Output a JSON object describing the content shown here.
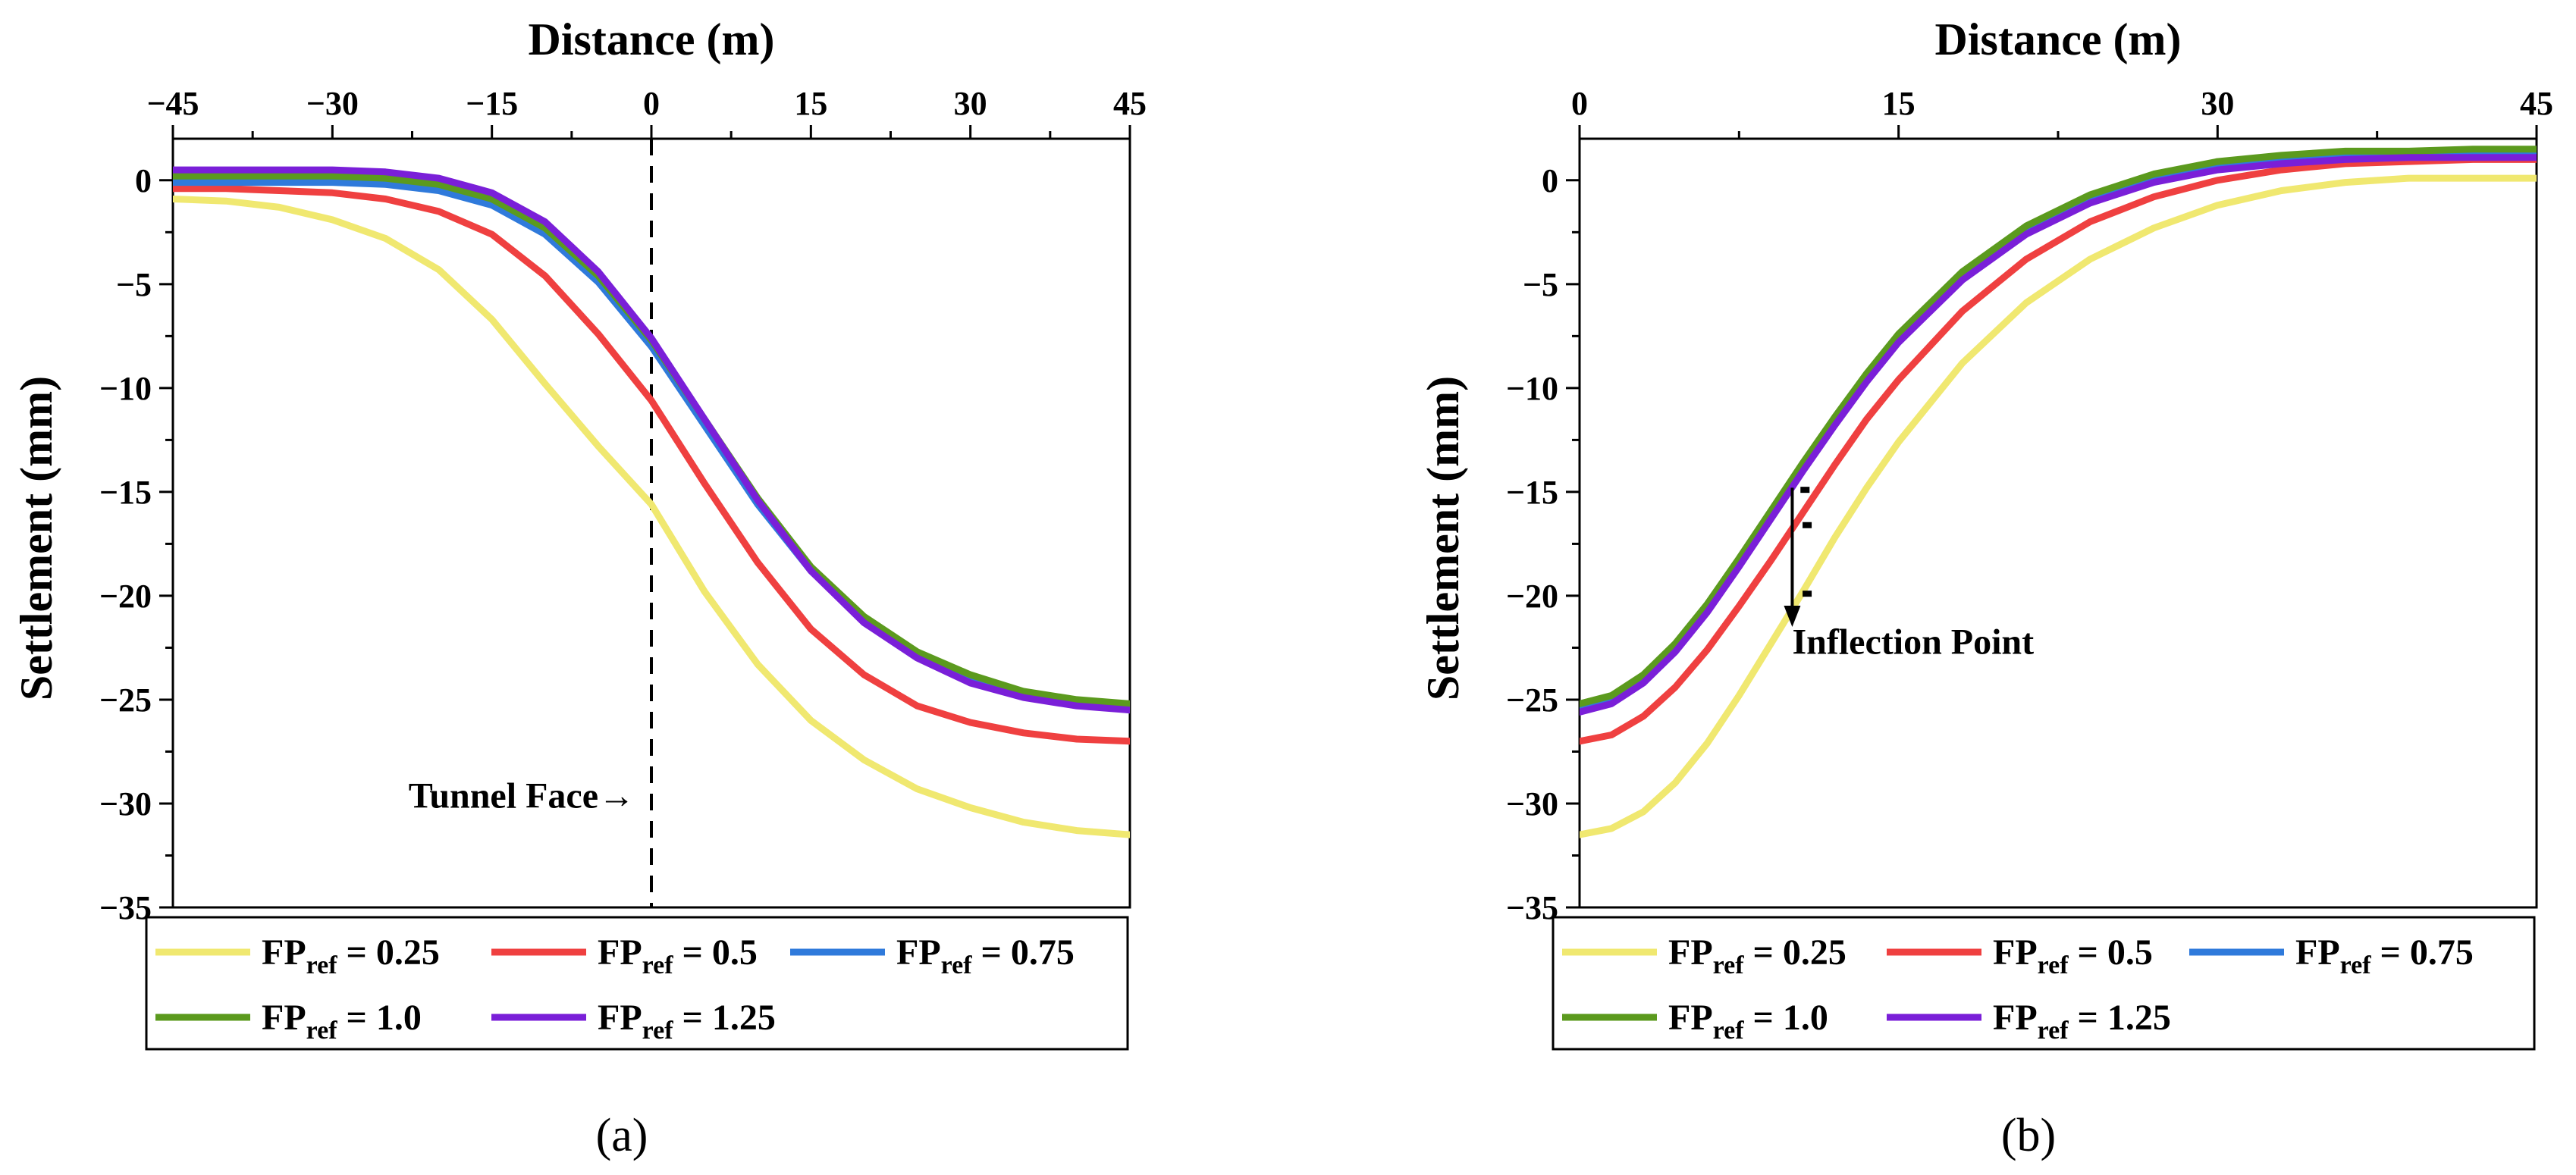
{
  "chart_data": [
    {
      "type": "line",
      "panel_caption": "(a)",
      "xlabel": "Distance (m)",
      "ylabel": "Settlement (mm)",
      "xlim": [
        -45,
        45
      ],
      "ylim": [
        -35,
        2
      ],
      "x_ticks": [
        -45,
        -30,
        -15,
        0,
        15,
        30,
        45
      ],
      "x_tick_labels": [
        "−45",
        "−30",
        "−15",
        "0",
        "15",
        "30",
        "45"
      ],
      "y_ticks": [
        0,
        -5,
        -10,
        -15,
        -20,
        -25,
        -30,
        -35
      ],
      "y_tick_labels": [
        "0",
        "−5",
        "−10",
        "−15",
        "−20",
        "−25",
        "−30",
        "−35"
      ],
      "grid": false,
      "x_axis_position": "top",
      "legend_position": "bottom",
      "annotations": [
        {
          "text": "Tunnel Face→",
          "x": 0,
          "y": -30.2
        }
      ],
      "reference_line": {
        "type": "vertical-dashed",
        "x": 0
      },
      "series": [
        {
          "name": "FP_ref = 0.25",
          "legend_main": "FP",
          "legend_sub": "ref",
          "legend_value": " = 0.25",
          "color": "#F0E870",
          "x": [
            -45,
            -40,
            -35,
            -30,
            -25,
            -20,
            -15,
            -10,
            -5,
            0,
            5,
            10,
            15,
            20,
            25,
            30,
            35,
            40,
            45
          ],
          "y": [
            -0.9,
            -1.0,
            -1.3,
            -1.9,
            -2.8,
            -4.3,
            -6.7,
            -9.8,
            -12.8,
            -15.6,
            -19.8,
            -23.3,
            -26.0,
            -27.9,
            -29.3,
            -30.2,
            -30.9,
            -31.3,
            -31.5
          ]
        },
        {
          "name": "FP_ref = 0.5",
          "legend_main": "FP",
          "legend_sub": "ref",
          "legend_value": " = 0.5",
          "color": "#EF4040",
          "x": [
            -45,
            -40,
            -35,
            -30,
            -25,
            -20,
            -15,
            -10,
            -5,
            0,
            5,
            10,
            15,
            20,
            25,
            30,
            35,
            40,
            45
          ],
          "y": [
            -0.4,
            -0.4,
            -0.5,
            -0.6,
            -0.9,
            -1.5,
            -2.6,
            -4.6,
            -7.4,
            -10.6,
            -14.6,
            -18.4,
            -21.6,
            -23.8,
            -25.3,
            -26.1,
            -26.6,
            -26.9,
            -27.0
          ]
        },
        {
          "name": "FP_ref = 0.75",
          "legend_main": "FP",
          "legend_sub": "ref",
          "legend_value": " = 0.75",
          "color": "#2F7ADB",
          "x": [
            -45,
            -40,
            -35,
            -30,
            -25,
            -20,
            -15,
            -10,
            -5,
            0,
            5,
            10,
            15,
            20,
            25,
            30,
            35,
            40,
            45
          ],
          "y": [
            -0.1,
            -0.1,
            -0.1,
            -0.1,
            -0.2,
            -0.5,
            -1.2,
            -2.6,
            -4.9,
            -8.0,
            -11.8,
            -15.6,
            -18.8,
            -21.2,
            -22.9,
            -24.0,
            -24.7,
            -25.2,
            -25.5
          ]
        },
        {
          "name": "FP_ref = 1.0",
          "legend_main": "FP",
          "legend_sub": "ref",
          "legend_value": " = 1.0",
          "color": "#5B9A1E",
          "x": [
            -45,
            -40,
            -35,
            -30,
            -25,
            -20,
            -15,
            -10,
            -5,
            0,
            5,
            10,
            15,
            20,
            25,
            30,
            35,
            40,
            45
          ],
          "y": [
            0.2,
            0.2,
            0.2,
            0.2,
            0.1,
            -0.2,
            -0.9,
            -2.3,
            -4.6,
            -7.7,
            -11.5,
            -15.3,
            -18.6,
            -21.0,
            -22.7,
            -23.8,
            -24.6,
            -25.0,
            -25.2
          ]
        },
        {
          "name": "FP_ref = 1.25",
          "legend_main": "FP",
          "legend_sub": "ref",
          "legend_value": " = 1.25",
          "color": "#7A1FD8",
          "x": [
            -45,
            -40,
            -35,
            -30,
            -25,
            -20,
            -15,
            -10,
            -5,
            0,
            5,
            10,
            15,
            20,
            25,
            30,
            35,
            40,
            45
          ],
          "y": [
            0.5,
            0.5,
            0.5,
            0.5,
            0.4,
            0.1,
            -0.6,
            -2.0,
            -4.4,
            -7.6,
            -11.5,
            -15.4,
            -18.8,
            -21.3,
            -23.0,
            -24.2,
            -24.9,
            -25.3,
            -25.5
          ]
        }
      ]
    },
    {
      "type": "line",
      "panel_caption": "(b)",
      "xlabel": "Distance (m)",
      "ylabel": "Settlement (mm)",
      "xlim": [
        0,
        45
      ],
      "ylim": [
        -35,
        2
      ],
      "x_ticks": [
        0,
        15,
        30,
        45
      ],
      "x_tick_labels": [
        "0",
        "15",
        "30",
        "45"
      ],
      "y_ticks": [
        0,
        -5,
        -10,
        -15,
        -20,
        -25,
        -30,
        -35
      ],
      "y_tick_labels": [
        "0",
        "−5",
        "−10",
        "−15",
        "−20",
        "−25",
        "−30",
        "−35"
      ],
      "grid": false,
      "x_axis_position": "top",
      "legend_position": "bottom",
      "annotations": [
        {
          "text": "Inflection Point",
          "x": 10,
          "y": -22.8
        }
      ],
      "arrow": {
        "x": 10,
        "y_from": -14.8,
        "y_to": -21.5
      },
      "inflection_marks": [
        {
          "x": 10.6,
          "y": -14.9
        },
        {
          "x": 10.7,
          "y": -16.6
        },
        {
          "x": 10.7,
          "y": -19.9
        }
      ],
      "series": [
        {
          "name": "FP_ref = 0.25",
          "legend_main": "FP",
          "legend_sub": "ref",
          "legend_value": " = 0.25",
          "color": "#F0E870",
          "x": [
            0,
            1.5,
            3,
            4.5,
            6,
            7.5,
            9,
            10.5,
            12,
            13.5,
            15,
            18,
            21,
            24,
            27,
            30,
            33,
            36,
            39,
            42,
            45
          ],
          "y": [
            -31.5,
            -31.2,
            -30.4,
            -29.0,
            -27.1,
            -24.8,
            -22.3,
            -19.8,
            -17.2,
            -14.8,
            -12.6,
            -8.8,
            -5.9,
            -3.8,
            -2.3,
            -1.2,
            -0.5,
            -0.1,
            0.1,
            0.1,
            0.1
          ]
        },
        {
          "name": "FP_ref = 0.5",
          "legend_main": "FP",
          "legend_sub": "ref",
          "legend_value": " = 0.5",
          "color": "#EF4040",
          "x": [
            0,
            1.5,
            3,
            4.5,
            6,
            7.5,
            9,
            10.5,
            12,
            13.5,
            15,
            18,
            21,
            24,
            27,
            30,
            33,
            36,
            39,
            42,
            45
          ],
          "y": [
            -27.0,
            -26.7,
            -25.8,
            -24.4,
            -22.6,
            -20.5,
            -18.3,
            -16.0,
            -13.7,
            -11.5,
            -9.6,
            -6.3,
            -3.8,
            -2.0,
            -0.8,
            0.0,
            0.5,
            0.8,
            0.9,
            1.0,
            1.0
          ]
        },
        {
          "name": "FP_ref = 0.75",
          "legend_main": "FP",
          "legend_sub": "ref",
          "legend_value": " = 0.75",
          "color": "#2F7ADB",
          "x": [
            0,
            1.5,
            3,
            4.5,
            6,
            7.5,
            9,
            10.5,
            12,
            13.5,
            15,
            18,
            21,
            24,
            27,
            30,
            33,
            36,
            39,
            42,
            45
          ],
          "y": [
            -25.4,
            -25.0,
            -24.0,
            -22.5,
            -20.6,
            -18.4,
            -16.1,
            -13.8,
            -11.6,
            -9.5,
            -7.6,
            -4.6,
            -2.4,
            -0.9,
            0.1,
            0.7,
            1.0,
            1.2,
            1.2,
            1.3,
            1.3
          ]
        },
        {
          "name": "FP_ref = 1.0",
          "legend_main": "FP",
          "legend_sub": "ref",
          "legend_value": " = 1.0",
          "color": "#5B9A1E",
          "x": [
            0,
            1.5,
            3,
            4.5,
            6,
            7.5,
            9,
            10.5,
            12,
            13.5,
            15,
            18,
            21,
            24,
            27,
            30,
            33,
            36,
            39,
            42,
            45
          ],
          "y": [
            -25.2,
            -24.8,
            -23.8,
            -22.3,
            -20.4,
            -18.2,
            -15.9,
            -13.6,
            -11.4,
            -9.3,
            -7.4,
            -4.4,
            -2.2,
            -0.7,
            0.3,
            0.9,
            1.2,
            1.4,
            1.4,
            1.5,
            1.5
          ]
        },
        {
          "name": "FP_ref = 1.25",
          "legend_main": "FP",
          "legend_sub": "ref",
          "legend_value": " = 1.25",
          "color": "#7A1FD8",
          "x": [
            0,
            1.5,
            3,
            4.5,
            6,
            7.5,
            9,
            10.5,
            12,
            13.5,
            15,
            18,
            21,
            24,
            27,
            30,
            33,
            36,
            39,
            42,
            45
          ],
          "y": [
            -25.6,
            -25.2,
            -24.2,
            -22.7,
            -20.8,
            -18.6,
            -16.3,
            -14.0,
            -11.8,
            -9.7,
            -7.8,
            -4.8,
            -2.6,
            -1.1,
            -0.1,
            0.5,
            0.8,
            1.0,
            1.1,
            1.1,
            1.1
          ]
        }
      ]
    }
  ]
}
